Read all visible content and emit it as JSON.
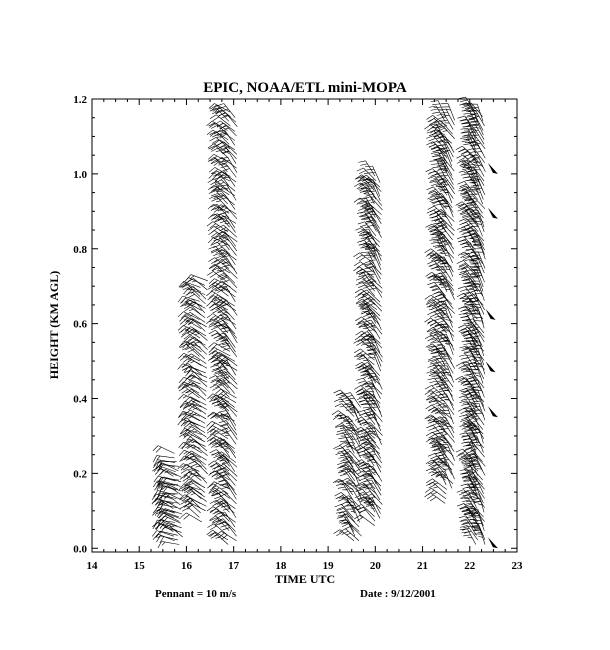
{
  "chart_data": {
    "type": "wind_barb_time_height",
    "title": "EPIC,   NOAA/ETL mini-MOPA",
    "xlabel": "TIME UTC",
    "ylabel": "HEIGHT (KM AGL)",
    "xlim": [
      14,
      23
    ],
    "ylim": [
      -0.01,
      1.2
    ],
    "x_ticks": [
      "14",
      "15",
      "16",
      "17",
      "18",
      "19",
      "20",
      "21",
      "22",
      "23"
    ],
    "y_ticks": [
      "0.0",
      "0.2",
      "0.4",
      "0.6",
      "0.8",
      "1.0",
      "1.2"
    ],
    "barb_convention": "Pennant = 10 m/s",
    "date_text": "Date : 9/12/2001",
    "profiles": [
      {
        "time": 15.75,
        "bottom": 0.02,
        "top": 0.26,
        "speed": 4,
        "dir": 290
      },
      {
        "time": 15.82,
        "bottom": 0.01,
        "top": 0.24,
        "speed": 3,
        "dir": 285
      },
      {
        "time": 15.9,
        "bottom": 0.03,
        "top": 0.2,
        "speed": 3,
        "dir": 300
      },
      {
        "time": 16.3,
        "bottom": 0.07,
        "top": 0.7,
        "speed": 4,
        "dir": 300
      },
      {
        "time": 16.42,
        "bottom": 0.1,
        "top": 0.72,
        "speed": 4,
        "dir": 305
      },
      {
        "time": 16.9,
        "bottom": 0.01,
        "top": 1.17,
        "speed": 5,
        "dir": 310
      },
      {
        "time": 17.05,
        "bottom": 0.02,
        "top": 1.16,
        "speed": 5,
        "dir": 315
      },
      {
        "time": 19.55,
        "bottom": 0.02,
        "top": 0.4,
        "speed": 4,
        "dir": 320
      },
      {
        "time": 19.68,
        "bottom": 0.02,
        "top": 0.38,
        "speed": 4,
        "dir": 325
      },
      {
        "time": 20.0,
        "bottom": 0.06,
        "top": 1.0,
        "speed": 5,
        "dir": 320
      },
      {
        "time": 20.12,
        "bottom": 0.08,
        "top": 0.98,
        "speed": 5,
        "dir": 325
      },
      {
        "time": 21.5,
        "bottom": 0.12,
        "top": 1.16,
        "speed": 6,
        "dir": 320
      },
      {
        "time": 21.65,
        "bottom": 0.16,
        "top": 1.15,
        "speed": 6,
        "dir": 325
      },
      {
        "time": 22.15,
        "bottom": 0.01,
        "top": 1.17,
        "speed": 7,
        "dir": 325
      },
      {
        "time": 22.3,
        "bottom": 0.01,
        "top": 1.16,
        "speed": 7,
        "dir": 330
      }
    ],
    "pennants": [
      {
        "time": 22.3,
        "height": 0.0
      },
      {
        "time": 22.3,
        "height": 0.35
      },
      {
        "time": 22.25,
        "height": 0.47
      },
      {
        "time": 22.25,
        "height": 0.61
      },
      {
        "time": 22.3,
        "height": 0.88
      },
      {
        "time": 22.3,
        "height": 1.0
      }
    ]
  }
}
